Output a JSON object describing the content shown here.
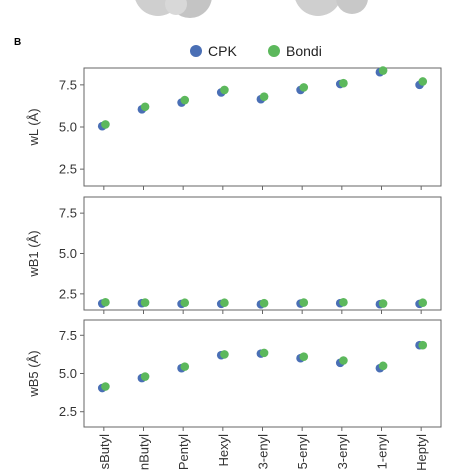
{
  "panel_letter": "B",
  "legend": [
    {
      "label": "CPK",
      "color": "#4a6fb5"
    },
    {
      "label": "Bondi",
      "color": "#5cb85c"
    }
  ],
  "chart_data": {
    "type": "scatter",
    "categories": [
      "sButyl",
      "nButyl",
      "Pentyl",
      "Hexyl",
      "3-enyl",
      "5-enyl",
      "3-enyl",
      "1-enyl",
      "Heptyl"
    ],
    "panels": [
      {
        "ylabel": "wL (Å)",
        "ylim": [
          1.5,
          8.5
        ],
        "yticks": [
          "7.5",
          "5.0",
          "2.5"
        ],
        "series": [
          {
            "name": "CPK",
            "values": [
              5.05,
              6.05,
              6.45,
              7.05,
              6.65,
              7.2,
              7.55,
              8.25,
              7.5
            ]
          },
          {
            "name": "Bondi",
            "values": [
              5.15,
              6.2,
              6.6,
              7.2,
              6.8,
              7.35,
              7.6,
              8.35,
              7.7
            ]
          }
        ]
      },
      {
        "ylabel": "wB1 (Å)",
        "ylim": [
          1.5,
          8.5
        ],
        "yticks": [
          "7.5",
          "5.0",
          "2.5"
        ],
        "series": [
          {
            "name": "CPK",
            "values": [
              1.9,
              1.92,
              1.88,
              1.88,
              1.85,
              1.9,
              1.92,
              1.86,
              1.88
            ]
          },
          {
            "name": "Bondi",
            "values": [
              1.98,
              1.96,
              1.95,
              1.95,
              1.92,
              1.96,
              1.98,
              1.9,
              1.95
            ]
          }
        ]
      },
      {
        "ylabel": "wB5 (Å)",
        "ylim": [
          1.5,
          8.5
        ],
        "yticks": [
          "7.5",
          "5.0",
          "2.5"
        ],
        "series": [
          {
            "name": "CPK",
            "values": [
              4.05,
              4.7,
              5.35,
              6.2,
              6.3,
              6.0,
              5.7,
              5.35,
              6.85
            ]
          },
          {
            "name": "Bondi",
            "values": [
              4.15,
              4.8,
              5.45,
              6.25,
              6.35,
              6.1,
              5.85,
              5.5,
              6.85
            ]
          }
        ]
      }
    ]
  }
}
